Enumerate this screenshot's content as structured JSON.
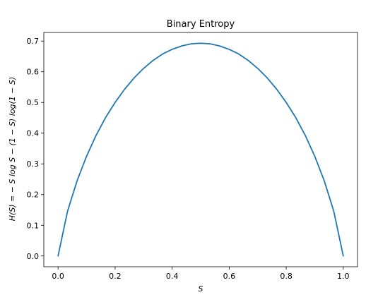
{
  "chart_data": {
    "type": "line",
    "title": "Binary Entropy",
    "xlabel": "S",
    "ylabel": "H(S) = − S log S − (1 − S) log(1 − S)",
    "xlim": [
      -0.05,
      1.05
    ],
    "ylim": [
      -0.035,
      0.728
    ],
    "xticks": [
      0.0,
      0.2,
      0.4,
      0.6,
      0.8,
      1.0
    ],
    "xtick_labels": [
      "0.0",
      "0.2",
      "0.4",
      "0.6",
      "0.8",
      "1.0"
    ],
    "yticks": [
      0.0,
      0.1,
      0.2,
      0.3,
      0.4,
      0.5,
      0.6,
      0.7
    ],
    "ytick_labels": [
      "0.0",
      "0.1",
      "0.2",
      "0.3",
      "0.4",
      "0.5",
      "0.6",
      "0.7"
    ],
    "grid": false,
    "series": [
      {
        "color": "#1f77b4",
        "x": [
          0.0,
          0.0333,
          0.0667,
          0.1,
          0.1333,
          0.1667,
          0.2,
          0.2333,
          0.2667,
          0.3,
          0.3333,
          0.3667,
          0.4,
          0.4333,
          0.4667,
          0.5,
          0.5333,
          0.5667,
          0.6,
          0.6333,
          0.6667,
          0.7,
          0.7333,
          0.7667,
          0.8,
          0.8333,
          0.8667,
          0.9,
          0.9333,
          0.9667,
          1.0
        ],
        "y": [
          0.0,
          0.146,
          0.245,
          0.325,
          0.393,
          0.451,
          0.5,
          0.543,
          0.58,
          0.611,
          0.637,
          0.658,
          0.673,
          0.684,
          0.691,
          0.693,
          0.691,
          0.684,
          0.673,
          0.658,
          0.637,
          0.611,
          0.58,
          0.543,
          0.5,
          0.451,
          0.393,
          0.325,
          0.245,
          0.146,
          0.0
        ]
      }
    ]
  }
}
